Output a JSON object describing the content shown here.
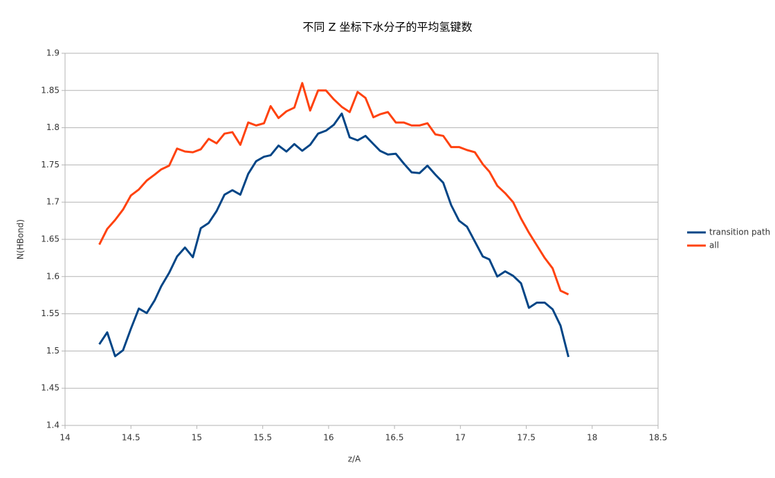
{
  "chart_data": {
    "type": "line",
    "title": "不同 Z 坐标下水分子的平均氢键数",
    "x_label": "z/A",
    "y_label": "N(HBond)",
    "x": [
      14.26,
      14.32,
      14.38,
      14.44,
      14.5,
      14.56,
      14.62,
      14.68,
      14.73,
      14.79,
      14.85,
      14.91,
      14.97,
      15.03,
      15.09,
      15.15,
      15.21,
      15.27,
      15.33,
      15.39,
      15.45,
      15.51,
      15.56,
      15.62,
      15.68,
      15.74,
      15.8,
      15.86,
      15.92,
      15.98,
      16.04,
      16.1,
      16.16,
      16.22,
      16.28,
      16.34,
      16.39,
      16.45,
      16.51,
      16.57,
      16.63,
      16.69,
      16.75,
      16.81,
      16.87,
      16.93,
      16.99,
      17.05,
      17.11,
      17.17,
      17.22,
      17.28,
      17.34,
      17.4,
      17.46,
      17.52,
      17.58,
      17.64,
      17.7,
      17.76,
      17.82
    ],
    "series": [
      {
        "name": "transition path",
        "color": "#004586",
        "values": [
          1.509,
          1.525,
          1.493,
          1.501,
          1.53,
          1.557,
          1.551,
          1.568,
          1.587,
          1.605,
          1.627,
          1.639,
          1.626,
          1.665,
          1.672,
          1.688,
          1.71,
          1.716,
          1.71,
          1.738,
          1.755,
          1.761,
          1.763,
          1.776,
          1.768,
          1.778,
          1.769,
          1.777,
          1.792,
          1.796,
          1.804,
          1.819,
          1.787,
          1.783,
          1.789,
          1.778,
          1.769,
          1.764,
          1.765,
          1.752,
          1.74,
          1.739,
          1.749,
          1.737,
          1.726,
          1.696,
          1.675,
          1.667,
          1.647,
          1.627,
          1.623,
          1.6,
          1.607,
          1.601,
          1.591,
          1.558,
          1.565,
          1.565,
          1.556,
          1.534,
          1.492
        ]
      },
      {
        "name": "all",
        "color": "#ff420e",
        "values": [
          1.643,
          1.664,
          1.676,
          1.69,
          1.709,
          1.717,
          1.729,
          1.737,
          1.744,
          1.749,
          1.772,
          1.768,
          1.767,
          1.771,
          1.785,
          1.779,
          1.792,
          1.794,
          1.777,
          1.807,
          1.803,
          1.806,
          1.829,
          1.813,
          1.822,
          1.827,
          1.86,
          1.823,
          1.85,
          1.85,
          1.838,
          1.828,
          1.821,
          1.848,
          1.84,
          1.814,
          1.818,
          1.821,
          1.807,
          1.807,
          1.803,
          1.803,
          1.806,
          1.791,
          1.789,
          1.774,
          1.774,
          1.77,
          1.767,
          1.751,
          1.741,
          1.722,
          1.712,
          1.7,
          1.678,
          1.659,
          1.642,
          1.625,
          1.611,
          1.581,
          1.576
        ]
      }
    ],
    "xlim": [
      14,
      18.5
    ],
    "xticks": [
      14,
      14.5,
      15,
      15.5,
      16,
      16.5,
      17,
      17.5,
      18,
      18.5
    ],
    "ylim": [
      1.4,
      1.9
    ],
    "yticks": [
      1.4,
      1.45,
      1.5,
      1.55,
      1.6,
      1.65,
      1.7,
      1.75,
      1.8,
      1.85,
      1.9
    ],
    "grid": true,
    "legend": "right"
  }
}
